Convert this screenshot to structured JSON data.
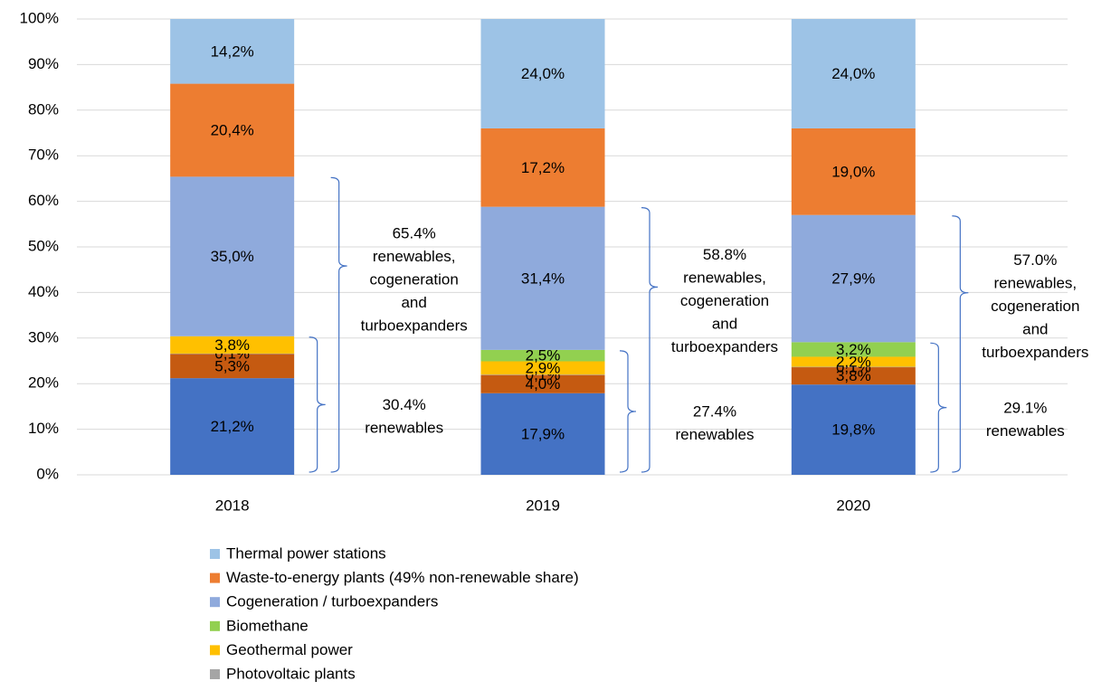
{
  "chart_data": {
    "type": "stacked_bar",
    "categories": [
      "2018",
      "2019",
      "2020"
    ],
    "ylim": [
      0,
      100
    ],
    "yticks": [
      {
        "value": 0,
        "label": "0%"
      },
      {
        "value": 10,
        "label": "10%"
      },
      {
        "value": 20,
        "label": "20%"
      },
      {
        "value": 30,
        "label": "30%"
      },
      {
        "value": 40,
        "label": "40%"
      },
      {
        "value": 50,
        "label": "50%"
      },
      {
        "value": 60,
        "label": "60%"
      },
      {
        "value": 70,
        "label": "70%"
      },
      {
        "value": 80,
        "label": "80%"
      },
      {
        "value": 90,
        "label": "90%"
      },
      {
        "value": 100,
        "label": "100%"
      }
    ],
    "grid": true,
    "series": [
      {
        "color": "#4472c4",
        "values": [
          21.2,
          17.9,
          19.8
        ],
        "value_labels": [
          "21,2%",
          "17,9%",
          "19,8%"
        ]
      },
      {
        "color": "#c55a11",
        "values": [
          5.3,
          4.0,
          3.8
        ],
        "value_labels": [
          "5,3%",
          "4,0%",
          "3,8%"
        ]
      },
      {
        "name": "Photovoltaic plants",
        "color": "#a5a5a5",
        "values": [
          0.1,
          0.1,
          0.1
        ],
        "value_labels": [
          "0,1%",
          "0,1%",
          "0,1%"
        ]
      },
      {
        "name": "Geothermal power",
        "color": "#ffc000",
        "values": [
          3.8,
          2.9,
          2.2
        ],
        "value_labels": [
          "3,8%",
          "2,9%",
          "2,2%"
        ]
      },
      {
        "name": "Biomethane",
        "color": "#92d050",
        "values": [
          null,
          2.5,
          3.2
        ],
        "value_labels": [
          null,
          "2,5%",
          "3,2%"
        ]
      },
      {
        "name": "Cogeneration / turboexpanders",
        "color": "#8faadc",
        "values": [
          35.0,
          31.4,
          27.9
        ],
        "value_labels": [
          "35,0%",
          "31,4%",
          "27,9%"
        ]
      },
      {
        "name": "Waste-to-energy plants (49% non-renewable share)",
        "color": "#ed7d31",
        "values": [
          20.4,
          17.2,
          19.0
        ],
        "value_labels": [
          "20,4%",
          "17,2%",
          "19,0%"
        ]
      },
      {
        "name": "Thermal power stations",
        "color": "#9dc3e6",
        "values": [
          14.2,
          24.0,
          24.0
        ],
        "value_labels": [
          "14,2%",
          "24,0%",
          "24,0%"
        ]
      }
    ],
    "annotations": [
      [
        [
          "30.4%",
          "renewables"
        ],
        [
          "65.4%",
          "renewables,",
          "cogeneration",
          "and",
          "turboexpanders"
        ]
      ],
      [
        [
          "27.4%",
          "renewables"
        ],
        [
          "58.8%",
          "renewables,",
          "cogeneration",
          "and",
          "turboexpanders"
        ]
      ],
      [
        [
          "29.1%",
          "renewables"
        ],
        [
          "57.0%",
          "renewables,",
          "cogeneration",
          "and",
          "turboexpanders"
        ]
      ]
    ]
  }
}
